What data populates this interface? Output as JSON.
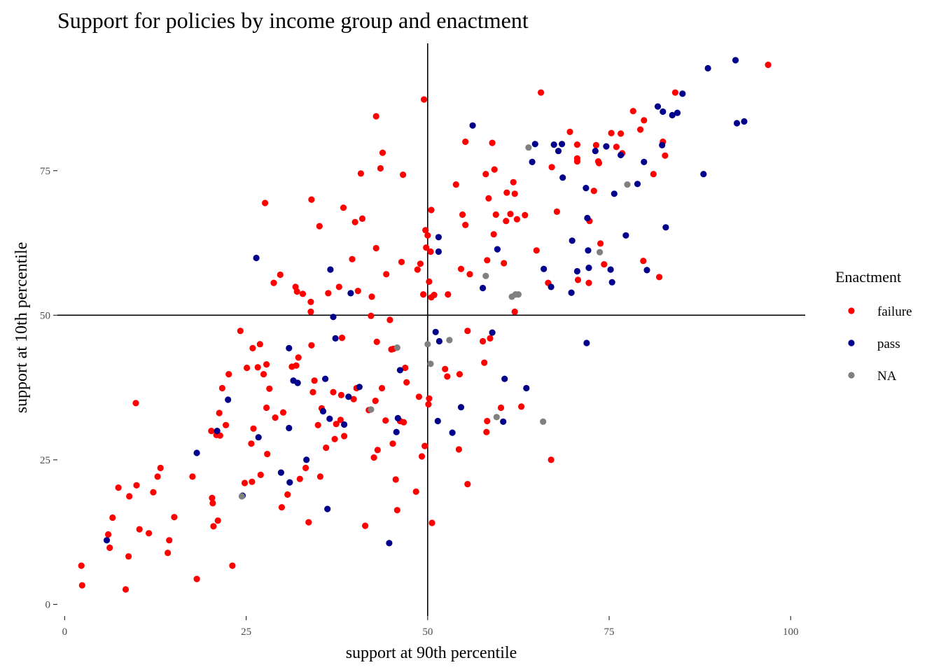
{
  "chart_data": {
    "type": "scatter",
    "title": "Support for policies by income group and enactment",
    "xlabel": "support at 90th percentile",
    "ylabel": "support at 10th percentile",
    "xlim": [
      -1,
      102
    ],
    "ylim": [
      -2,
      97
    ],
    "x_ticks": [
      0,
      25,
      50,
      75,
      100
    ],
    "y_ticks": [
      0,
      25,
      50,
      75
    ],
    "reference_lines": {
      "x": 50,
      "y": 50
    },
    "grid": false,
    "legend": {
      "title": "Enactment",
      "position": "right",
      "entries": [
        {
          "label": "failure",
          "color": "#ff0000"
        },
        {
          "label": "pass",
          "color": "#00008b"
        },
        {
          "label": "NA",
          "color": "#808080"
        }
      ]
    },
    "series": [
      {
        "name": "failure",
        "color": "#ff0000",
        "points": [
          [
            2.3,
            6.7
          ],
          [
            2.4,
            3.3
          ],
          [
            6.0,
            12.1
          ],
          [
            6.2,
            9.8
          ],
          [
            6.6,
            15.0
          ],
          [
            7.4,
            20.2
          ],
          [
            8.4,
            2.6
          ],
          [
            8.8,
            8.3
          ],
          [
            8.9,
            18.7
          ],
          [
            9.8,
            34.8
          ],
          [
            9.9,
            20.6
          ],
          [
            10.3,
            13.0
          ],
          [
            11.6,
            12.3
          ],
          [
            12.2,
            19.4
          ],
          [
            12.8,
            22.1
          ],
          [
            13.2,
            23.6
          ],
          [
            14.2,
            8.9
          ],
          [
            14.4,
            11.1
          ],
          [
            15.1,
            15.1
          ],
          [
            17.6,
            22.1
          ],
          [
            18.2,
            4.4
          ],
          [
            20.2,
            30.0
          ],
          [
            20.3,
            18.4
          ],
          [
            20.4,
            17.5
          ],
          [
            20.5,
            13.5
          ],
          [
            20.9,
            29.3
          ],
          [
            21.1,
            14.5
          ],
          [
            21.3,
            33.1
          ],
          [
            21.4,
            29.2
          ],
          [
            21.7,
            37.4
          ],
          [
            22.2,
            31.0
          ],
          [
            22.6,
            39.8
          ],
          [
            23.1,
            6.7
          ],
          [
            24.2,
            47.3
          ],
          [
            24.8,
            21.0
          ],
          [
            25.1,
            40.9
          ],
          [
            25.7,
            27.8
          ],
          [
            25.8,
            21.2
          ],
          [
            25.9,
            44.3
          ],
          [
            26.0,
            30.4
          ],
          [
            26.6,
            41.0
          ],
          [
            26.9,
            45.0
          ],
          [
            27.0,
            22.4
          ],
          [
            27.4,
            39.8
          ],
          [
            27.8,
            34.0
          ],
          [
            27.8,
            41.5
          ],
          [
            27.9,
            26.0
          ],
          [
            28.2,
            37.3
          ],
          [
            28.8,
            55.6
          ],
          [
            29.0,
            32.3
          ],
          [
            29.7,
            57.0
          ],
          [
            29.9,
            16.8
          ],
          [
            30.1,
            33.2
          ],
          [
            30.7,
            19.0
          ],
          [
            27.6,
            69.4
          ],
          [
            31.3,
            41.1
          ],
          [
            31.8,
            54.9
          ],
          [
            31.9,
            41.3
          ],
          [
            32.0,
            54.1
          ],
          [
            32.2,
            42.7
          ],
          [
            32.4,
            21.7
          ],
          [
            32.8,
            53.7
          ],
          [
            33.2,
            23.6
          ],
          [
            33.6,
            14.2
          ],
          [
            33.9,
            52.3
          ],
          [
            33.9,
            50.6
          ],
          [
            34.0,
            44.8
          ],
          [
            34.0,
            70.0
          ],
          [
            34.2,
            36.7
          ],
          [
            34.4,
            38.7
          ],
          [
            34.9,
            31.0
          ],
          [
            35.1,
            65.4
          ],
          [
            35.2,
            22.1
          ],
          [
            35.4,
            33.9
          ],
          [
            36.0,
            27.1
          ],
          [
            36.3,
            53.8
          ],
          [
            37.0,
            36.7
          ],
          [
            37.2,
            28.6
          ],
          [
            37.4,
            31.2
          ],
          [
            37.8,
            54.9
          ],
          [
            38.0,
            31.9
          ],
          [
            38.1,
            36.2
          ],
          [
            38.2,
            46.1
          ],
          [
            38.4,
            68.6
          ],
          [
            38.5,
            29.1
          ],
          [
            39.6,
            59.7
          ],
          [
            39.8,
            35.5
          ],
          [
            40.0,
            66.1
          ],
          [
            40.2,
            37.4
          ],
          [
            40.4,
            54.2
          ],
          [
            40.8,
            74.5
          ],
          [
            41.0,
            66.7
          ],
          [
            41.4,
            13.6
          ],
          [
            41.9,
            33.6
          ],
          [
            42.2,
            49.9
          ],
          [
            42.3,
            53.2
          ],
          [
            42.6,
            25.4
          ],
          [
            42.8,
            35.2
          ],
          [
            42.9,
            84.4
          ],
          [
            42.9,
            61.6
          ],
          [
            43.0,
            45.4
          ],
          [
            43.1,
            26.7
          ],
          [
            43.5,
            75.4
          ],
          [
            43.7,
            37.4
          ],
          [
            43.8,
            78.1
          ],
          [
            44.2,
            31.8
          ],
          [
            44.3,
            57.1
          ],
          [
            44.8,
            49.2
          ],
          [
            45.0,
            44.1
          ],
          [
            45.2,
            27.8
          ],
          [
            45.3,
            44.2
          ],
          [
            45.6,
            21.6
          ],
          [
            45.8,
            16.3
          ],
          [
            46.2,
            31.7
          ],
          [
            46.4,
            59.2
          ],
          [
            46.6,
            74.3
          ],
          [
            46.7,
            31.5
          ],
          [
            46.9,
            40.9
          ],
          [
            47.1,
            38.4
          ],
          [
            48.4,
            19.5
          ],
          [
            48.6,
            57.9
          ],
          [
            48.8,
            35.9
          ],
          [
            49.0,
            58.9
          ],
          [
            49.2,
            25.6
          ],
          [
            49.4,
            53.6
          ],
          [
            49.6,
            27.4
          ],
          [
            49.5,
            87.3
          ],
          [
            49.7,
            64.7
          ],
          [
            49.8,
            61.7
          ],
          [
            50.0,
            63.8
          ],
          [
            50.1,
            34.6
          ],
          [
            50.2,
            35.6
          ],
          [
            50.2,
            55.8
          ],
          [
            50.4,
            61.0
          ],
          [
            50.5,
            68.2
          ],
          [
            50.5,
            53.1
          ],
          [
            50.6,
            14.1
          ],
          [
            50.9,
            53.5
          ],
          [
            52.4,
            40.7
          ],
          [
            52.7,
            39.4
          ],
          [
            52.8,
            53.6
          ],
          [
            53.9,
            72.6
          ],
          [
            54.3,
            26.8
          ],
          [
            54.4,
            39.8
          ],
          [
            54.6,
            58.0
          ],
          [
            54.8,
            67.4
          ],
          [
            55.2,
            65.6
          ],
          [
            55.2,
            80.0
          ],
          [
            55.5,
            20.8
          ],
          [
            55.5,
            47.3
          ],
          [
            55.8,
            57.1
          ],
          [
            57.6,
            45.5
          ],
          [
            57.8,
            41.8
          ],
          [
            58.0,
            74.4
          ],
          [
            58.1,
            29.8
          ],
          [
            58.2,
            31.7
          ],
          [
            58.2,
            59.5
          ],
          [
            58.4,
            70.2
          ],
          [
            58.6,
            46.0
          ],
          [
            58.9,
            79.8
          ],
          [
            59.1,
            64.0
          ],
          [
            59.2,
            75.2
          ],
          [
            59.4,
            67.4
          ],
          [
            60.1,
            34.0
          ],
          [
            60.5,
            59.0
          ],
          [
            60.8,
            66.3
          ],
          [
            60.9,
            71.2
          ],
          [
            61.4,
            67.5
          ],
          [
            61.8,
            73.0
          ],
          [
            62.0,
            71.0
          ],
          [
            62.0,
            50.6
          ],
          [
            62.3,
            66.6
          ],
          [
            62.9,
            34.2
          ],
          [
            63.4,
            67.3
          ],
          [
            65.0,
            61.2
          ],
          [
            65.6,
            88.5
          ],
          [
            66.6,
            55.6
          ],
          [
            67.0,
            25.0
          ],
          [
            67.1,
            75.6
          ],
          [
            67.8,
            67.9
          ],
          [
            69.6,
            81.7
          ],
          [
            70.6,
            77.1
          ],
          [
            70.6,
            76.6
          ],
          [
            70.6,
            79.5
          ],
          [
            70.7,
            56.1
          ],
          [
            72.2,
            55.6
          ],
          [
            72.3,
            66.3
          ],
          [
            72.9,
            71.5
          ],
          [
            73.2,
            79.4
          ],
          [
            73.5,
            76.6
          ],
          [
            73.6,
            76.3
          ],
          [
            73.8,
            62.4
          ],
          [
            74.3,
            58.8
          ],
          [
            75.3,
            81.5
          ],
          [
            76.0,
            79.1
          ],
          [
            76.6,
            81.4
          ],
          [
            76.8,
            78.0
          ],
          [
            78.3,
            85.3
          ],
          [
            79.3,
            82.1
          ],
          [
            79.7,
            59.4
          ],
          [
            79.8,
            83.7
          ],
          [
            81.1,
            74.4
          ],
          [
            81.9,
            56.6
          ],
          [
            82.4,
            80.0
          ],
          [
            82.7,
            77.6
          ],
          [
            84.1,
            88.5
          ],
          [
            96.9,
            93.3
          ]
        ]
      },
      {
        "name": "pass",
        "color": "#00008b",
        "points": [
          [
            5.8,
            11.1
          ],
          [
            18.2,
            26.2
          ],
          [
            21.0,
            30.0
          ],
          [
            22.5,
            35.4
          ],
          [
            24.5,
            18.8
          ],
          [
            26.4,
            59.9
          ],
          [
            26.7,
            28.9
          ],
          [
            29.8,
            22.8
          ],
          [
            30.9,
            30.5
          ],
          [
            30.9,
            44.3
          ],
          [
            31.0,
            21.1
          ],
          [
            31.5,
            38.7
          ],
          [
            32.1,
            38.3
          ],
          [
            33.3,
            25.0
          ],
          [
            35.6,
            33.4
          ],
          [
            35.9,
            39.0
          ],
          [
            36.2,
            16.5
          ],
          [
            36.5,
            32.1
          ],
          [
            36.6,
            57.9
          ],
          [
            37.0,
            49.7
          ],
          [
            37.3,
            46.0
          ],
          [
            38.5,
            31.1
          ],
          [
            39.1,
            35.9
          ],
          [
            39.4,
            53.8
          ],
          [
            40.6,
            37.6
          ],
          [
            44.7,
            10.6
          ],
          [
            45.7,
            29.8
          ],
          [
            45.9,
            32.2
          ],
          [
            46.2,
            40.5
          ],
          [
            51.1,
            47.1
          ],
          [
            51.4,
            31.7
          ],
          [
            51.5,
            61.0
          ],
          [
            51.5,
            63.5
          ],
          [
            51.6,
            45.5
          ],
          [
            53.4,
            29.7
          ],
          [
            54.6,
            34.1
          ],
          [
            56.2,
            82.8
          ],
          [
            57.6,
            54.7
          ],
          [
            58.9,
            47.0
          ],
          [
            59.6,
            61.4
          ],
          [
            60.6,
            39.0
          ],
          [
            60.4,
            31.6
          ],
          [
            63.6,
            37.4
          ],
          [
            64.4,
            76.5
          ],
          [
            64.8,
            79.6
          ],
          [
            66.0,
            58.0
          ],
          [
            67.0,
            54.9
          ],
          [
            67.4,
            79.5
          ],
          [
            68.0,
            78.4
          ],
          [
            68.5,
            79.6
          ],
          [
            68.6,
            73.8
          ],
          [
            69.8,
            53.9
          ],
          [
            69.9,
            62.9
          ],
          [
            70.6,
            57.6
          ],
          [
            71.8,
            72.0
          ],
          [
            71.9,
            45.2
          ],
          [
            72.0,
            66.8
          ],
          [
            72.1,
            61.2
          ],
          [
            72.2,
            58.2
          ],
          [
            73.1,
            78.4
          ],
          [
            74.6,
            79.2
          ],
          [
            75.2,
            57.9
          ],
          [
            75.4,
            55.7
          ],
          [
            75.7,
            71.0
          ],
          [
            76.6,
            77.7
          ],
          [
            77.3,
            63.8
          ],
          [
            78.9,
            72.7
          ],
          [
            79.8,
            76.5
          ],
          [
            80.2,
            57.8
          ],
          [
            81.7,
            86.1
          ],
          [
            82.3,
            79.4
          ],
          [
            82.4,
            85.2
          ],
          [
            82.8,
            65.2
          ],
          [
            83.7,
            84.6
          ],
          [
            84.4,
            85.0
          ],
          [
            85.1,
            88.3
          ],
          [
            88.0,
            74.4
          ],
          [
            88.6,
            92.7
          ],
          [
            92.4,
            94.1
          ],
          [
            92.6,
            83.2
          ],
          [
            93.6,
            83.5
          ]
        ]
      },
      {
        "name": "NA",
        "color": "#808080",
        "points": [
          [
            24.4,
            18.7
          ],
          [
            42.2,
            33.7
          ],
          [
            45.8,
            44.4
          ],
          [
            50.0,
            45.0
          ],
          [
            50.4,
            41.6
          ],
          [
            53.0,
            45.7
          ],
          [
            58.0,
            56.8
          ],
          [
            59.5,
            32.4
          ],
          [
            61.6,
            53.2
          ],
          [
            62.1,
            53.6
          ],
          [
            62.5,
            53.6
          ],
          [
            63.9,
            79.0
          ],
          [
            65.9,
            31.6
          ],
          [
            73.7,
            60.9
          ],
          [
            77.5,
            72.6
          ]
        ]
      }
    ]
  }
}
